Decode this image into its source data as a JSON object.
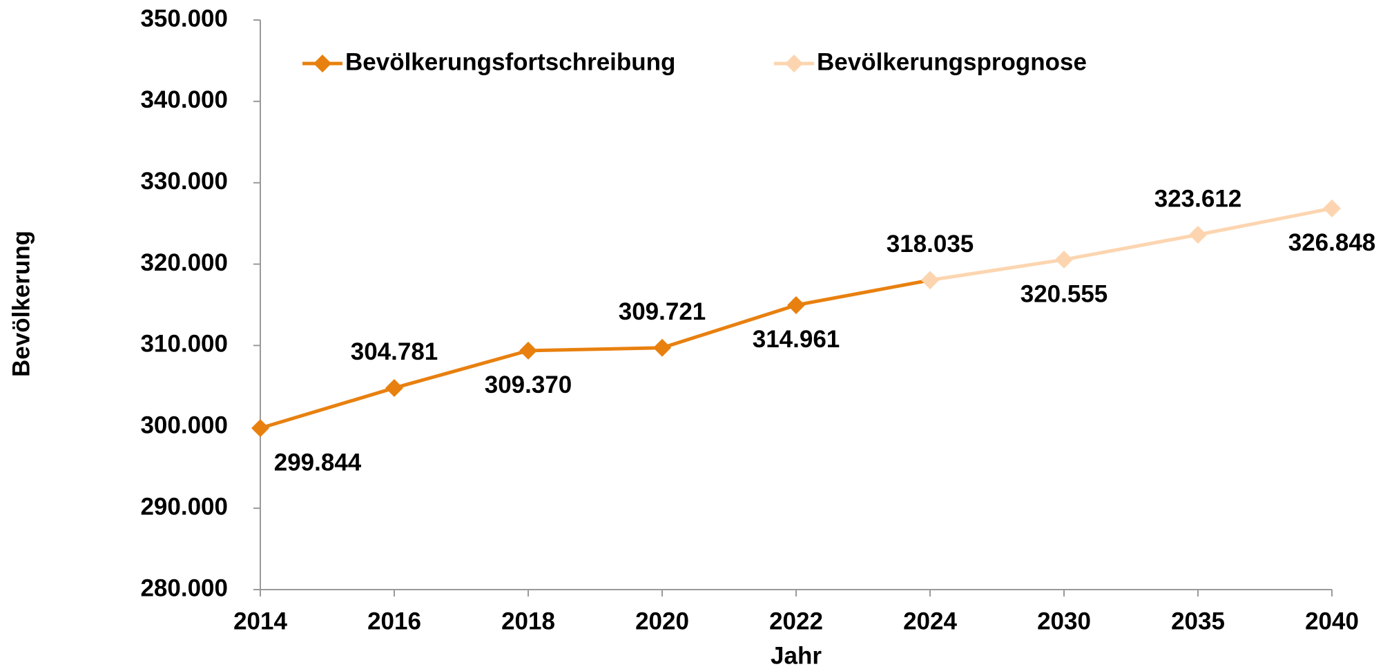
{
  "chart_data": {
    "type": "line",
    "x_label": "Jahr",
    "y_label": "Bevölkerung",
    "categories": [
      "2014",
      "2016",
      "2018",
      "2020",
      "2022",
      "2024",
      "2030",
      "2035",
      "2040"
    ],
    "series": [
      {
        "name": "Bevölkerungsfortschreibung",
        "color": "#e8800f",
        "values": [
          299844,
          304781,
          309370,
          309721,
          314961,
          318035,
          null,
          null,
          null
        ],
        "value_labels": [
          "299.844",
          "304.781",
          "309.370",
          "309.721",
          "314.961",
          "318.035",
          null,
          null,
          null
        ]
      },
      {
        "name": "Bevölkerungsprognose",
        "color": "#fcd5b0",
        "values": [
          null,
          null,
          null,
          null,
          null,
          318035,
          320555,
          323612,
          326848
        ],
        "value_labels": [
          null,
          null,
          null,
          null,
          null,
          null,
          "320.555",
          "323.612",
          "326.848"
        ]
      }
    ],
    "ylim": [
      280000,
      350000
    ],
    "yticks": [
      {
        "value": 280000,
        "label": "280.000"
      },
      {
        "value": 290000,
        "label": "290.000"
      },
      {
        "value": 300000,
        "label": "300.000"
      },
      {
        "value": 310000,
        "label": "310.000"
      },
      {
        "value": 320000,
        "label": "320.000"
      },
      {
        "value": 330000,
        "label": "330.000"
      },
      {
        "value": 340000,
        "label": "340.000"
      },
      {
        "value": 350000,
        "label": "350.000"
      }
    ],
    "legend": "top",
    "grid": false
  }
}
